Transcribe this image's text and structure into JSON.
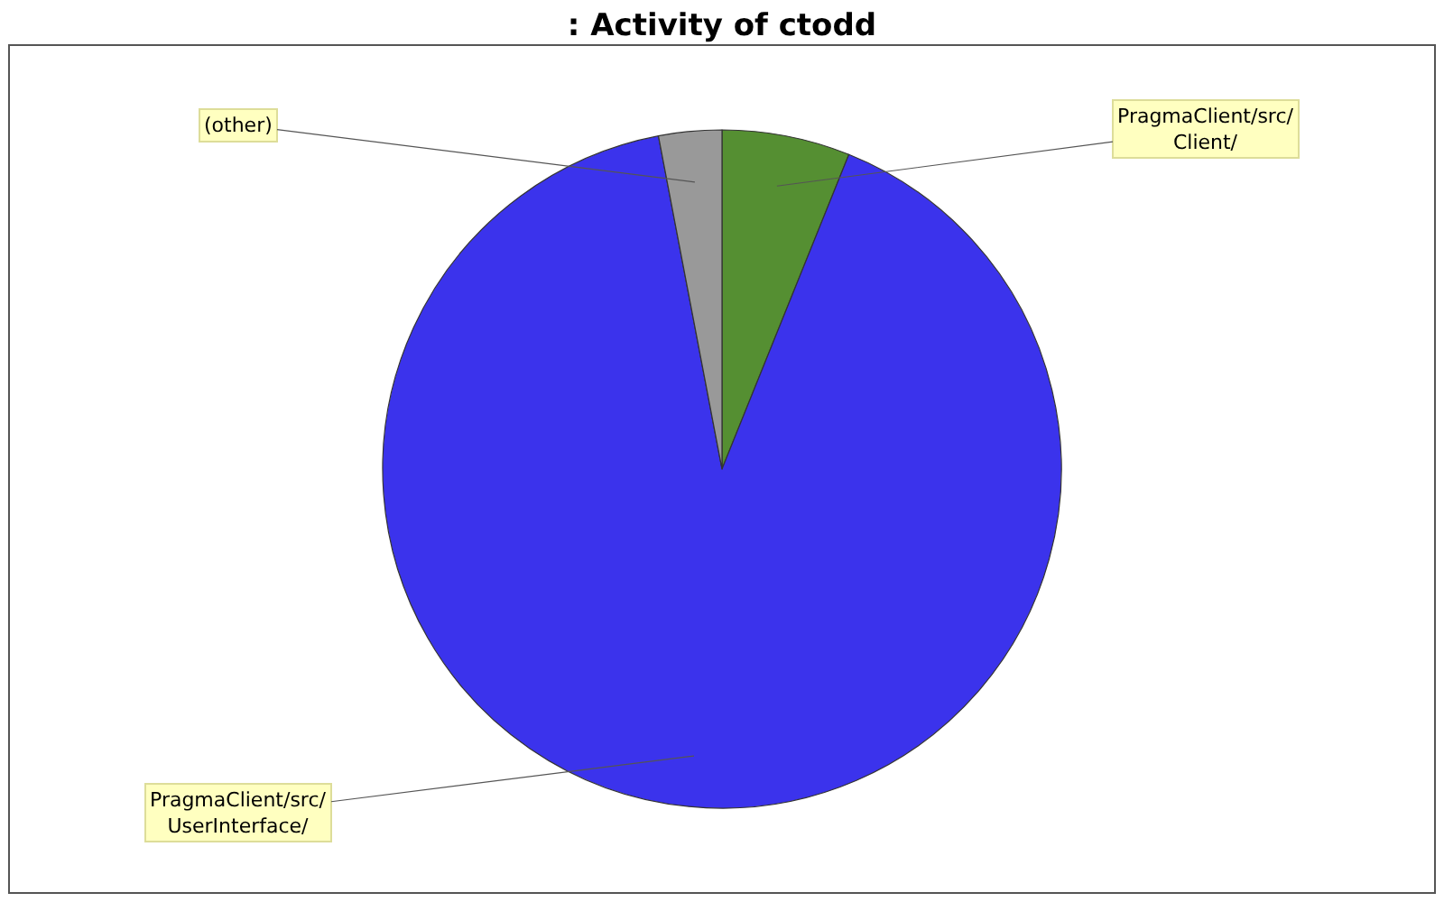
{
  "chart_data": {
    "type": "pie",
    "title": ": Activity of ctodd",
    "categories": [
      "PragmaClient/src/Client/",
      "PragmaClient/src/UserInterface/",
      "(other)"
    ],
    "values": [
      6.1,
      90.9,
      3.0
    ],
    "colors": [
      "#558f32",
      "#3b33ec",
      "#999999"
    ]
  }
}
